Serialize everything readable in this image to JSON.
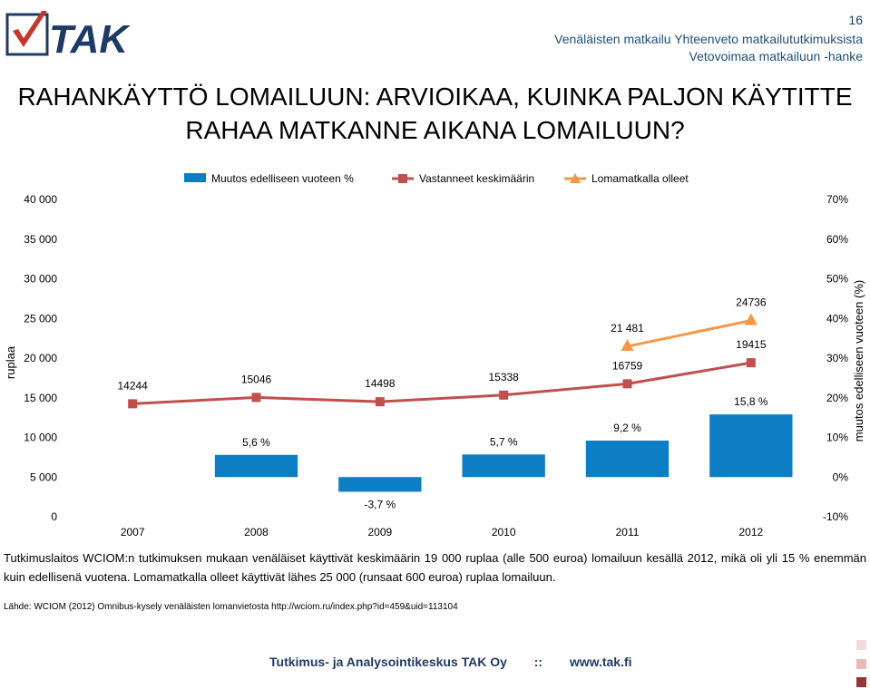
{
  "header": {
    "logo_text": "TAK",
    "page_number": "16",
    "subtitle_line1": "Venäläisten matkailu  Yhteenveto matkailututkimuksista",
    "subtitle_line2": "Vetovoimaa matkailuun -hanke"
  },
  "title": "RAHANKÄYTTÖ LOMAILUUN: ARVIOIKAA, KUINKA PALJON KÄYTITTE RAHAA MATKANNE AIKANA LOMAILUUN?",
  "chart_data": {
    "type": "bar",
    "categories": [
      "2007",
      "2008",
      "2009",
      "2010",
      "2011",
      "2012"
    ],
    "ylabel": "ruplaa",
    "y2label": "muutos edelliseen vuoteen (%)",
    "ylim": [
      0,
      40000
    ],
    "y2lim": [
      -10,
      70
    ],
    "yticks": [
      "0",
      "5 000",
      "10 000",
      "15 000",
      "20 000",
      "25 000",
      "30 000",
      "35 000",
      "40 000"
    ],
    "y2ticks": [
      "-10%",
      "0%",
      "10%",
      "20%",
      "30%",
      "40%",
      "50%",
      "60%",
      "70%"
    ],
    "legend_position": "top",
    "grid": false,
    "series": [
      {
        "name": "Muutos edelliseen vuoteen %",
        "kind": "bar",
        "axis": "right",
        "color": "#0d7ec4",
        "values": [
          null,
          5.6,
          -3.7,
          5.7,
          9.2,
          15.8
        ],
        "labels": [
          "",
          "5,6 %",
          "-3,7 %",
          "5,7 %",
          "9,2 %",
          "15,8 %"
        ]
      },
      {
        "name": "Vastanneet keskimäärin",
        "kind": "line",
        "axis": "left",
        "color": "#c0504d",
        "marker": "square",
        "values": [
          14244,
          15046,
          14498,
          15338,
          16759,
          19415
        ],
        "labels": [
          "14244",
          "15046",
          "14498",
          "15338",
          "16759",
          "19415"
        ]
      },
      {
        "name": "Lomamatkalla olleet",
        "kind": "line",
        "axis": "left",
        "color": "#f79646",
        "marker": "triangle",
        "values": [
          null,
          null,
          null,
          null,
          21481,
          24736
        ],
        "labels": [
          "",
          "",
          "",
          "",
          "21 481",
          "24736"
        ]
      }
    ]
  },
  "body_text": "Tutkimuslaitos WCIOM:n tutkimuksen mukaan venäläiset käyttivät keskimäärin 19 000 ruplaa (alle 500 euroa) lomailuun kesällä 2012, mikä oli yli 15 % enemmän kuin edellisenä vuotena. Lomamatkalla olleet käyttivät lähes 25 000 (runsaat 600 euroa) ruplaa lomailuun.",
  "source": "Lähde: WCIOM (2012) Omnibus-kysely venäläisten lomanvietosta http://wciom.ru/index.php?id=459&uid=113104",
  "footer": {
    "org": "Tutkimus- ja Analysointikeskus TAK Oy",
    "sep": "::",
    "url": "www.tak.fi"
  },
  "colors": {
    "accent_dark": "#1f3b63",
    "footer_square_light": "#f2dcdb",
    "footer_square_mid": "#e6b9b8",
    "footer_square_dark": "#943634"
  }
}
